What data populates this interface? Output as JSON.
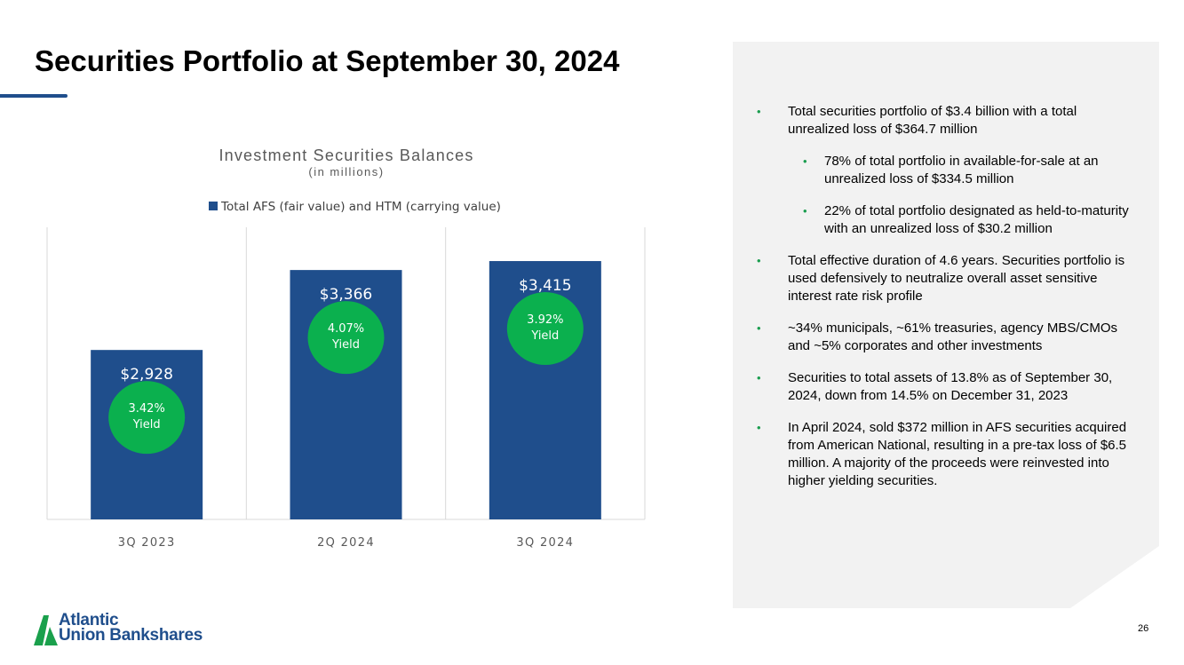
{
  "slide": {
    "title": "Securities Portfolio at September 30, 2024",
    "page_number": "26"
  },
  "colors": {
    "bar": "#1f4e8c",
    "yield_badge": "#0bb04e",
    "bullet": "#1a9d4f",
    "panel": "#f2f2f2"
  },
  "chart_data": {
    "type": "bar",
    "title": "Investment Securities Balances",
    "subtitle": "(in millions)",
    "legend": [
      "Total AFS (fair value) and HTM (carrying value)"
    ],
    "legend_position": "top",
    "categories": [
      "3Q 2023",
      "2Q 2024",
      "3Q 2024"
    ],
    "series": [
      {
        "name": "Total AFS (fair value) and HTM (carrying value)",
        "values": [
          2928,
          3366,
          3415
        ]
      }
    ],
    "data_labels": [
      "$2,928",
      "$3,366",
      "$3,415"
    ],
    "annotations": [
      {
        "category": "3Q 2023",
        "line1": "3.42%",
        "line2": "Yield"
      },
      {
        "category": "2Q 2024",
        "line1": "4.07%",
        "line2": "Yield"
      },
      {
        "category": "3Q 2024",
        "line1": "3.92%",
        "line2": "Yield"
      }
    ],
    "ylim": [
      2000,
      3600
    ],
    "grid": "vertical"
  },
  "bullets": [
    {
      "level": 1,
      "text": "Total securities portfolio of $3.4 billion with a total unrealized loss of $364.7 million"
    },
    {
      "level": 2,
      "text": "78% of total portfolio in available-for-sale at an unrealized loss of $334.5 million"
    },
    {
      "level": 2,
      "text": "22% of total portfolio designated as held-to-maturity with an unrealized loss of $30.2 million"
    },
    {
      "level": 1,
      "text": "Total effective duration of 4.6 years. Securities portfolio is used defensively to neutralize overall asset sensitive interest rate risk profile"
    },
    {
      "level": 1,
      "text": "~34% municipals, ~61% treasuries, agency MBS/CMOs and ~5% corporates and other investments"
    },
    {
      "level": 1,
      "text": "Securities to total assets of 13.8% as of September 30, 2024, down from 14.5% on December 31, 2023"
    },
    {
      "level": 1,
      "text": "In April 2024, sold $372 million in AFS securities acquired from American National, resulting in a pre-tax loss of $6.5 million. A majority of the proceeds were reinvested into higher yielding securities."
    }
  ],
  "logo": {
    "line1": "Atlantic",
    "line2": "Union Bankshares"
  }
}
